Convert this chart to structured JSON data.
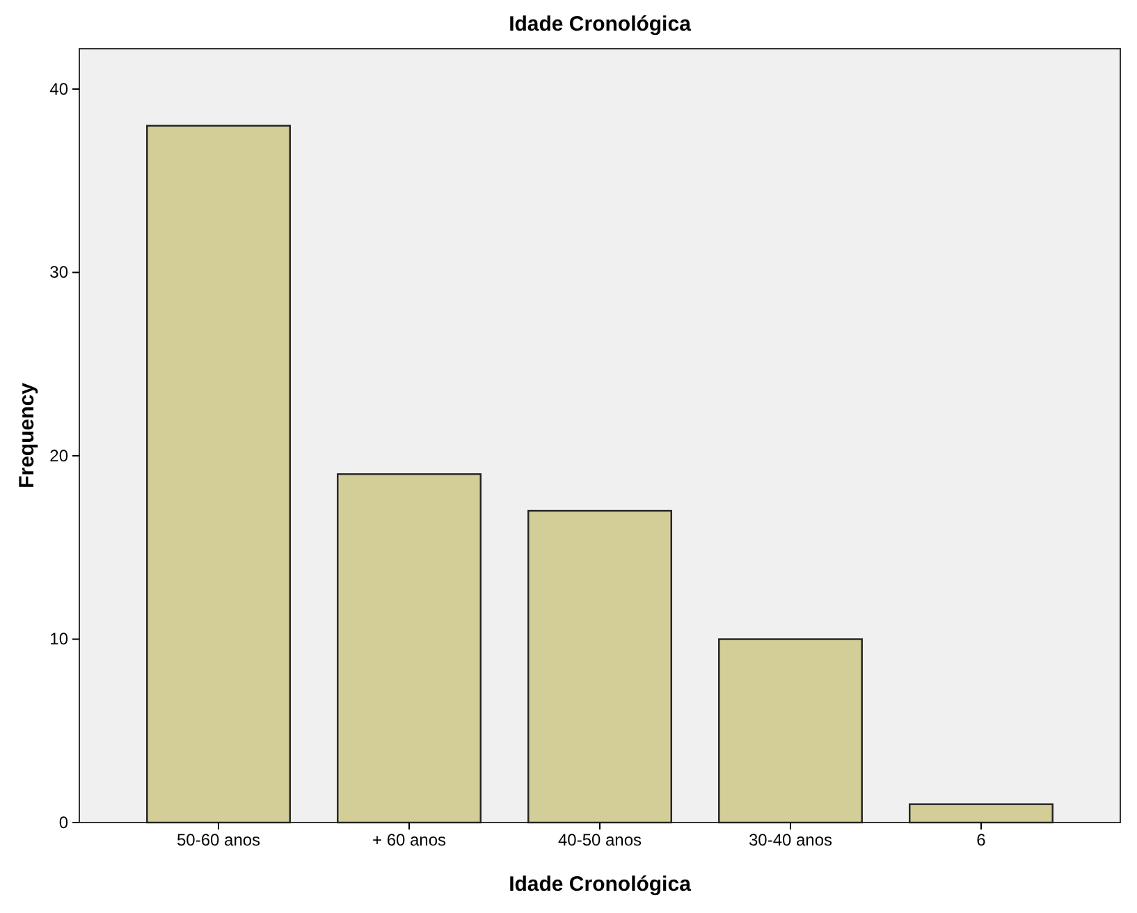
{
  "chart_data": {
    "type": "bar",
    "title": "Idade Cronológica",
    "xlabel": "Idade Cronológica",
    "ylabel": "Frequency",
    "categories": [
      "50-60 anos",
      "+ 60 anos",
      "40-50 anos",
      "30-40 anos",
      "6"
    ],
    "values": [
      38,
      19,
      17,
      10,
      1
    ],
    "color": "#d3ce97",
    "ylim": [
      0,
      42.2
    ],
    "yticks": [
      0,
      10,
      20,
      30,
      40
    ],
    "grid": false
  }
}
